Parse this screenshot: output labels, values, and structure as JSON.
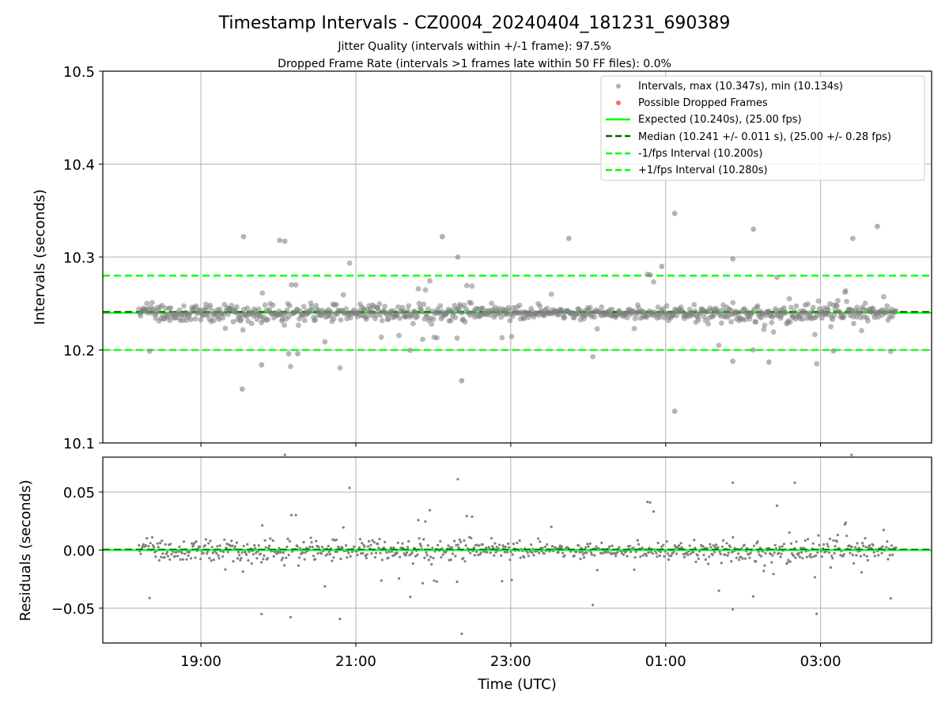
{
  "title": "Timestamp Intervals - CZ0004_20240404_181231_690389",
  "subtitle_lines": [
    "Jitter Quality (intervals within +/-1 frame): 97.5%",
    "Dropped Frame Rate (intervals >1 frames late within 50 FF files): 0.0%"
  ],
  "colors": {
    "points": "#808080",
    "dropped": "#ff0000",
    "expected": "#00ff00",
    "median": "#006400",
    "fps_interval": "#00ff00",
    "grid": "#b0b0b0"
  },
  "chart_data": [
    {
      "type": "scatter",
      "panel": "intervals",
      "ylabel": "Intervals (seconds)",
      "xlabel": "",
      "ylim": [
        10.1,
        10.5
      ],
      "yticks": [
        10.1,
        10.2,
        10.3,
        10.4,
        10.5
      ],
      "ytick_labels": [
        "10.1",
        "10.2",
        "10.3",
        "10.4",
        "10.5"
      ],
      "xlim": [
        "2024-04-04 17:44",
        "2024-04-05 04:26"
      ],
      "xticks": [
        "2024-04-04 19:00",
        "2024-04-04 21:00",
        "2024-04-04 23:00",
        "2024-04-05 01:00",
        "2024-04-05 03:00"
      ],
      "xtick_labels": [
        "19:00",
        "21:00",
        "23:00",
        "01:00",
        "03:00"
      ],
      "grid": true,
      "legend_position": "top-right",
      "legend": [
        "Intervals, max (10.347s), min (10.134s)",
        "Possible Dropped Frames",
        "Expected (10.240s), (25.00 fps)",
        "Median (10.241 +/- 0.011 s), (25.00 +/- 0.28 fps)",
        "-1/fps Interval (10.200s)",
        "+1/fps Interval (10.280s)"
      ],
      "reference_lines": {
        "expected": 10.24,
        "median": 10.241,
        "minus_interval": 10.2,
        "plus_interval": 10.28
      },
      "data_range": {
        "start": "2024-04-04 18:12",
        "end": "2024-04-05 03:59",
        "interval_s": 10.24
      },
      "max": 10.347,
      "min": 10.134,
      "series": [
        {
          "name": "Intervals, max (10.347s), min (10.134s)",
          "points": [
            [
              "2024-04-04 19:33",
              10.322
            ],
            [
              "2024-04-04 19:32",
              10.158
            ],
            [
              "2024-04-04 19:47",
              10.184
            ],
            [
              "2024-04-04 20:01",
              10.318
            ],
            [
              "2024-04-04 20:05",
              10.317
            ],
            [
              "2024-04-04 20:08",
              10.196
            ],
            [
              "2024-04-04 20:15",
              10.196
            ],
            [
              "2024-04-04 22:07",
              10.322
            ],
            [
              "2024-04-04 22:19",
              10.3
            ],
            [
              "2024-04-04 22:22",
              10.167
            ],
            [
              "2024-04-04 23:45",
              10.32
            ],
            [
              "2024-04-05 00:57",
              10.29
            ],
            [
              "2024-04-05 01:07",
              10.347
            ],
            [
              "2024-04-05 01:07",
              10.134
            ],
            [
              "2024-04-05 02:08",
              10.33
            ],
            [
              "2024-04-05 02:20",
              10.187
            ],
            [
              "2024-04-05 03:25",
              10.32
            ],
            [
              "2024-04-05 03:44",
              10.333
            ],
            [
              "2024-04-05 01:52",
              10.298
            ],
            [
              "2024-04-05 01:52",
              10.188
            ],
            [
              "2024-04-05 03:10",
              10.199
            ]
          ]
        },
        {
          "name": "Possible Dropped Frames",
          "points": []
        }
      ]
    },
    {
      "type": "scatter",
      "panel": "residuals",
      "ylabel": "Residuals (seconds)",
      "xlabel": "Time (UTC)",
      "ylim": [
        -0.08,
        0.08
      ],
      "yticks": [
        -0.05,
        0.0,
        0.05
      ],
      "ytick_labels": [
        "−0.05",
        "0.00",
        "0.05"
      ],
      "xlim": [
        "2024-04-04 17:44",
        "2024-04-05 04:26"
      ],
      "xticks": [
        "2024-04-04 19:00",
        "2024-04-04 21:00",
        "2024-04-04 23:00",
        "2024-04-05 01:00",
        "2024-04-05 03:00"
      ],
      "xtick_labels": [
        "19:00",
        "21:00",
        "23:00",
        "01:00",
        "03:00"
      ],
      "grid": true,
      "reference_lines": {
        "zero_expected": 0.0,
        "zero_median": 0.0
      },
      "series": [
        {
          "name": "Residuals",
          "points": [
            [
              "2024-04-04 19:47",
              -0.055
            ],
            [
              "2024-04-04 20:05",
              0.082
            ],
            [
              "2024-04-04 22:19",
              0.061
            ],
            [
              "2024-04-04 22:22",
              -0.072
            ],
            [
              "2024-04-05 01:52",
              0.058
            ],
            [
              "2024-04-05 01:52",
              -0.051
            ],
            [
              "2024-04-05 02:40",
              0.058
            ],
            [
              "2024-04-05 03:24",
              0.082
            ]
          ]
        }
      ]
    }
  ]
}
